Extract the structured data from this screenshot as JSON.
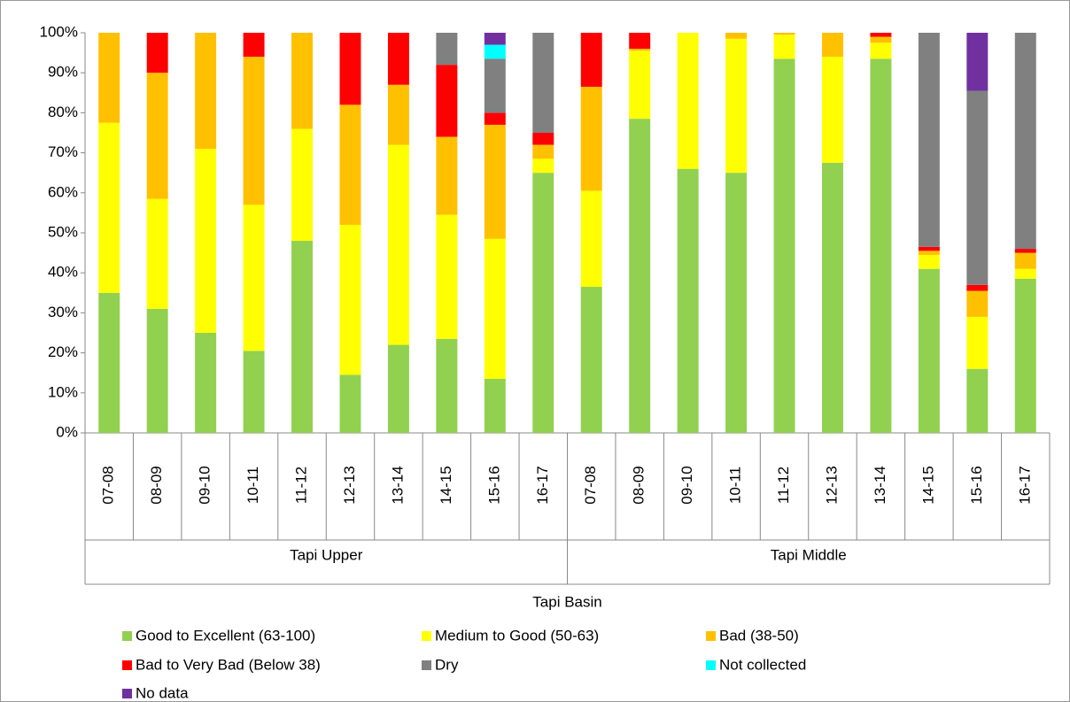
{
  "chart_data": {
    "type": "stacked_bar",
    "categories": [
      "07-08",
      "08-09",
      "09-10",
      "10-11",
      "11-12",
      "12-13",
      "13-14",
      "14-15",
      "15-16",
      "16-17",
      "07-08",
      "08-09",
      "09-10",
      "10-11",
      "11-12",
      "12-13",
      "13-14",
      "14-15",
      "15-16",
      "16-17"
    ],
    "x_groups": [
      "Tapi Upper",
      "Tapi Middle"
    ],
    "x_supergroup": "Tapi Basin",
    "series": [
      {
        "name": "Good to Excellent (63-100)",
        "color": "#92d050",
        "values": [
          35,
          31,
          25,
          20.5,
          48,
          14.5,
          22,
          23.5,
          13.5,
          65,
          36.5,
          78.5,
          66,
          65,
          93.5,
          67.5,
          93.5,
          41,
          16,
          38.5
        ]
      },
      {
        "name": "Medium to Good (50-63)",
        "color": "#ffff00",
        "values": [
          42.5,
          27.5,
          46,
          36.5,
          28,
          37.5,
          50,
          31,
          35,
          3.5,
          24,
          17,
          34,
          33.5,
          6,
          26.5,
          4,
          3.5,
          13,
          2.5
        ]
      },
      {
        "name": "Bad (38-50)",
        "color": "#ffc000",
        "values": [
          22.5,
          31.5,
          29,
          37,
          24,
          30,
          15,
          19.5,
          28.5,
          3.5,
          26,
          0.5,
          0,
          1.5,
          0.5,
          6,
          1.5,
          1,
          6.5,
          4
        ]
      },
      {
        "name": "Bad to Very Bad (Below 38)",
        "color": "#ff0000",
        "values": [
          0,
          10,
          0,
          6,
          0,
          18,
          13,
          18,
          3,
          3,
          13.5,
          4,
          0,
          0,
          0,
          0,
          1,
          1,
          1.5,
          1
        ]
      },
      {
        "name": "Dry",
        "color": "#808080",
        "values": [
          0,
          0,
          0,
          0,
          0,
          0,
          0,
          8,
          13.5,
          25,
          0,
          0,
          0,
          0,
          0,
          0,
          0,
          53.5,
          48.5,
          54
        ]
      },
      {
        "name": "Not collected",
        "color": "#00ffff",
        "values": [
          0,
          0,
          0,
          0,
          0,
          0,
          0,
          0,
          3.5,
          0,
          0,
          0,
          0,
          0,
          0,
          0,
          0,
          0,
          0,
          0
        ]
      },
      {
        "name": "No data",
        "color": "#7030a0",
        "values": [
          0,
          0,
          0,
          0,
          0,
          0,
          0,
          0,
          3,
          0,
          0,
          0,
          0,
          0,
          0,
          0,
          0,
          0,
          14.5,
          0
        ]
      }
    ],
    "ylim": [
      0,
      100
    ],
    "yticks": [
      {
        "value": 0,
        "label": "0%"
      },
      {
        "value": 10,
        "label": "10%"
      },
      {
        "value": 20,
        "label": "20%"
      },
      {
        "value": 30,
        "label": "30%"
      },
      {
        "value": 40,
        "label": "40%"
      },
      {
        "value": 50,
        "label": "50%"
      },
      {
        "value": 60,
        "label": "60%"
      },
      {
        "value": 70,
        "label": "70%"
      },
      {
        "value": 80,
        "label": "80%"
      },
      {
        "value": 90,
        "label": "90%"
      },
      {
        "value": 100,
        "label": "100%"
      }
    ],
    "grid": false
  }
}
